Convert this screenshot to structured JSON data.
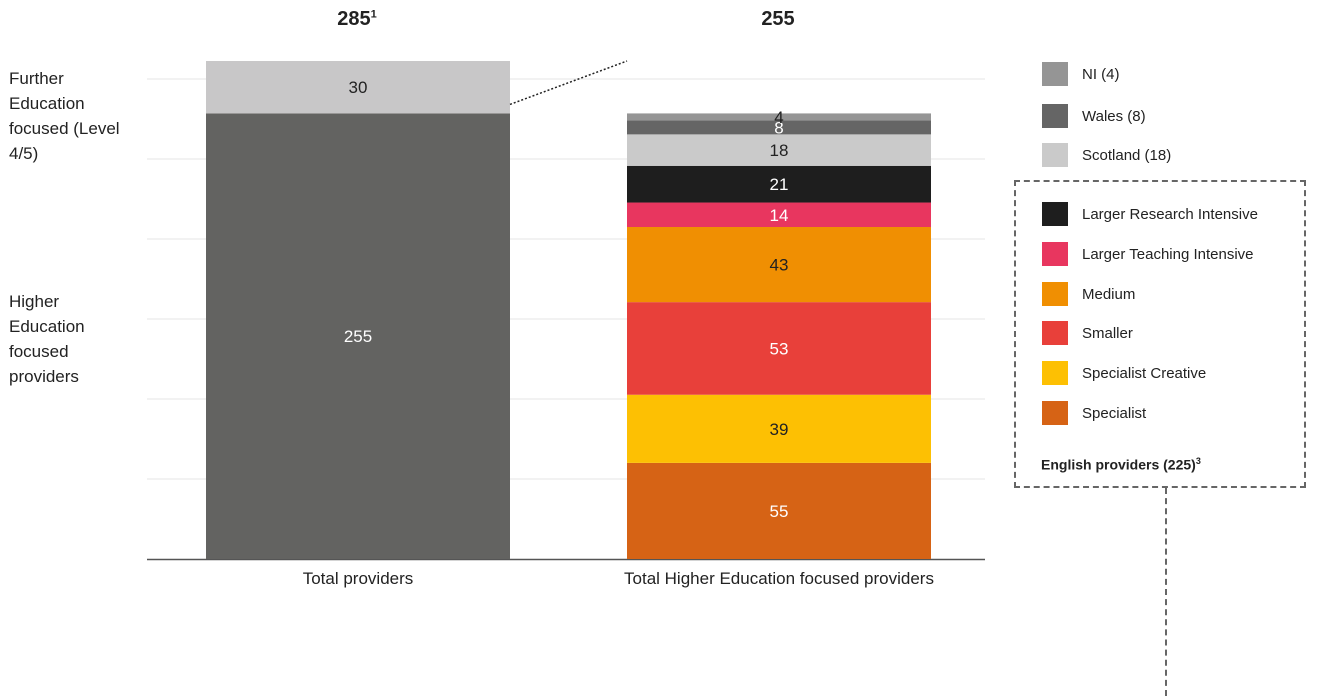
{
  "chart_data": {
    "type": "bar",
    "stacked": true,
    "categories": [
      "Total providers",
      "Total Higher Education focused providers"
    ],
    "totals": [
      {
        "value": "285",
        "footnote": "1"
      },
      {
        "value": "255",
        "footnote": ""
      }
    ],
    "ylim": [
      0,
      285
    ],
    "grid": true,
    "side_labels": [
      "Further Education focused (Level 4/5)",
      "Higher Education focused providers"
    ],
    "bars": [
      {
        "category": "Total providers",
        "segments": [
          {
            "name": "Higher Education focused providers",
            "value": 255,
            "color": "#636361",
            "label_color": "#ffffff"
          },
          {
            "name": "Further Education focused (Level 4/5)",
            "value": 30,
            "color": "#c8c7c8",
            "label_color": "#222222"
          }
        ]
      },
      {
        "category": "Total Higher Education focused providers",
        "segments": [
          {
            "name": "Specialist",
            "value": 55,
            "color": "#d66315",
            "label_color": "#ffffff"
          },
          {
            "name": "Specialist Creative",
            "value": 39,
            "color": "#fdc003",
            "label_color": "#222222"
          },
          {
            "name": "Smaller",
            "value": 53,
            "color": "#e8403a",
            "label_color": "#ffffff"
          },
          {
            "name": "Medium",
            "value": 43,
            "color": "#f08f02",
            "label_color": "#222222"
          },
          {
            "name": "Larger Teaching Intensive",
            "value": 14,
            "color": "#e8365f",
            "label_color": "#ffffff"
          },
          {
            "name": "Larger Research Intensive",
            "value": 21,
            "color": "#1e1e1e",
            "label_color": "#ffffff"
          },
          {
            "name": "Scotland",
            "value": 18,
            "color": "#cacaca",
            "label_color": "#222222"
          },
          {
            "name": "Wales",
            "value": 8,
            "color": "#656565",
            "label_color": "#ffffff"
          },
          {
            "name": "NI",
            "value": 4,
            "color": "#959595",
            "label_color": "#222222"
          }
        ]
      }
    ],
    "legend": {
      "placement": "right",
      "items": [
        {
          "label": "NI (4)",
          "color": "#959595"
        },
        {
          "label": "Wales (8)",
          "color": "#656565"
        },
        {
          "label": "Scotland (18)",
          "color": "#cacaca"
        }
      ],
      "english_items": [
        {
          "label": "Larger Research Intensive",
          "color": "#1e1e1e"
        },
        {
          "label": "Larger Teaching Intensive",
          "color": "#e8365f"
        },
        {
          "label": "Medium",
          "color": "#f08f02"
        },
        {
          "label": "Smaller",
          "color": "#e8403a"
        },
        {
          "label": "Specialist Creative",
          "color": "#fdc003"
        },
        {
          "label": "Specialist",
          "color": "#d66315"
        }
      ],
      "english_title": "English providers (225)",
      "english_title_footnote": "3"
    }
  }
}
